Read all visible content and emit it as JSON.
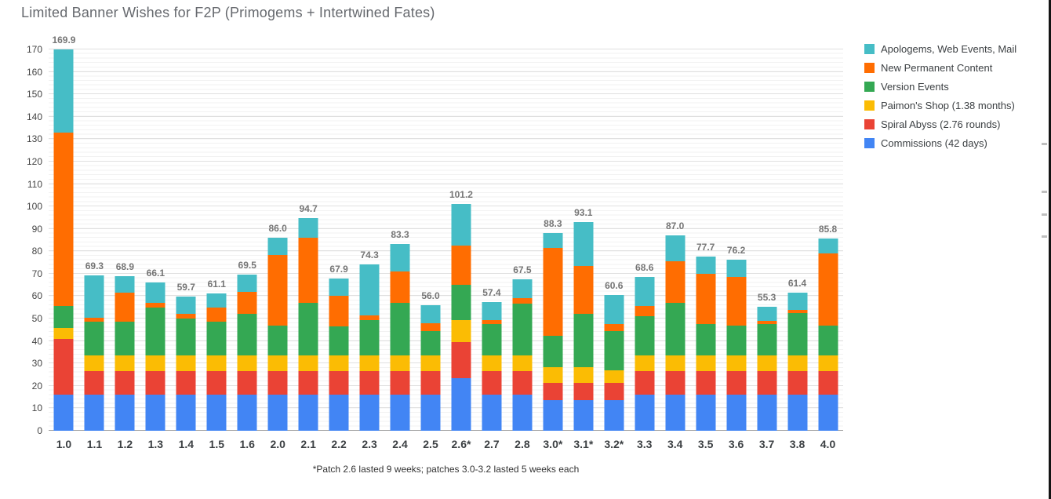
{
  "title": "Limited Banner Wishes for F2P (Primogems + Intertwined Fates)",
  "footnote": "*Patch 2.6 lasted 9 weeks; patches 3.0-3.2 lasted 5 weeks each",
  "chart_data": {
    "type": "bar",
    "stacked": true,
    "stack_order": "bottom-to-top",
    "title": "Limited Banner Wishes for F2P (Primogems + Intertwined Fates)",
    "footnote": "*Patch 2.6 lasted 9 weeks; patches 3.0-3.2 lasted 5 weeks each",
    "xlabel": "",
    "ylabel": "",
    "ylim": [
      0,
      170
    ],
    "ytick_step": 10,
    "grid": true,
    "legend_position": "right",
    "categories": [
      "1.0",
      "1.1",
      "1.2",
      "1.3",
      "1.4",
      "1.5",
      "1.6",
      "2.0",
      "2.1",
      "2.2",
      "2.3",
      "2.4",
      "2.5",
      "2.6*",
      "2.7",
      "2.8",
      "3.0*",
      "3.1*",
      "3.2*",
      "3.3",
      "3.4",
      "3.5",
      "3.6",
      "3.7",
      "3.8",
      "4.0"
    ],
    "totals": [
      "169.9",
      "69.3",
      "68.9",
      "66.1",
      "59.7",
      "61.1",
      "69.5",
      "86.0",
      "94.7",
      "67.9",
      "74.3",
      "83.3",
      "56.0",
      "101.2",
      "57.4",
      "67.5",
      "88.3",
      "93.1",
      "60.6",
      "68.6",
      "87.0",
      "77.7",
      "76.2",
      "55.3",
      "61.4",
      "85.8"
    ],
    "series": [
      {
        "key": "commissions",
        "name": "Commissions (42 days)",
        "color": "#4285F4",
        "values": [
          16,
          16,
          16,
          16,
          16,
          16,
          16,
          16,
          16,
          16,
          16,
          16,
          16,
          23.5,
          16,
          16,
          13.5,
          13.5,
          13.5,
          16,
          16,
          16,
          16,
          16,
          16,
          16
        ]
      },
      {
        "key": "spiral-abyss",
        "name": "Spiral Abyss (2.76 rounds)",
        "color": "#EA4335",
        "values": [
          25,
          10.5,
          10.5,
          10.5,
          10.5,
          10.5,
          10.5,
          10.5,
          10.5,
          10.5,
          10.5,
          10.5,
          10.5,
          16,
          10.5,
          10.5,
          8,
          8,
          8,
          10.5,
          10.5,
          10.5,
          10.5,
          10.5,
          10.5,
          10.5
        ]
      },
      {
        "key": "paimons-shop",
        "name": "Paimon's Shop (1.38 months)",
        "color": "#FBBC04",
        "values": [
          5,
          7,
          7,
          7,
          7,
          7,
          7,
          7,
          7,
          7,
          7,
          7,
          7,
          10,
          7,
          7,
          7,
          7,
          5.5,
          7,
          7,
          7,
          7,
          7,
          7,
          7
        ]
      },
      {
        "key": "version-events",
        "name": "Version Events",
        "color": "#34A853",
        "values": [
          9.5,
          15,
          15,
          21.5,
          16.5,
          15,
          18.5,
          13.5,
          23.5,
          13,
          16,
          23.5,
          11,
          15.5,
          14,
          23,
          14,
          23.5,
          17.5,
          17.5,
          23.5,
          14,
          13.5,
          14,
          19,
          13.5
        ]
      },
      {
        "key": "new-permanent-content",
        "name": "New Permanent Content",
        "color": "#FF6D01",
        "values": [
          77.5,
          2,
          13,
          2,
          2,
          6.5,
          10,
          31.5,
          29,
          13.5,
          2,
          14,
          3.5,
          17.5,
          2,
          2.5,
          39,
          21.5,
          3,
          4.5,
          18.5,
          22.5,
          21.5,
          1.5,
          1.5,
          32
        ]
      },
      {
        "key": "apologems",
        "name": "Apologems, Web Events, Mail",
        "color": "#46BDC6",
        "values": [
          36.9,
          18.8,
          7.4,
          9.1,
          7.7,
          6.1,
          7.5,
          7.5,
          8.7,
          7.9,
          22.8,
          12.3,
          8,
          18.7,
          7.9,
          8.5,
          6.8,
          19.6,
          13.1,
          13.1,
          11.5,
          7.7,
          7.7,
          6.3,
          7.4,
          6.8
        ]
      }
    ]
  }
}
